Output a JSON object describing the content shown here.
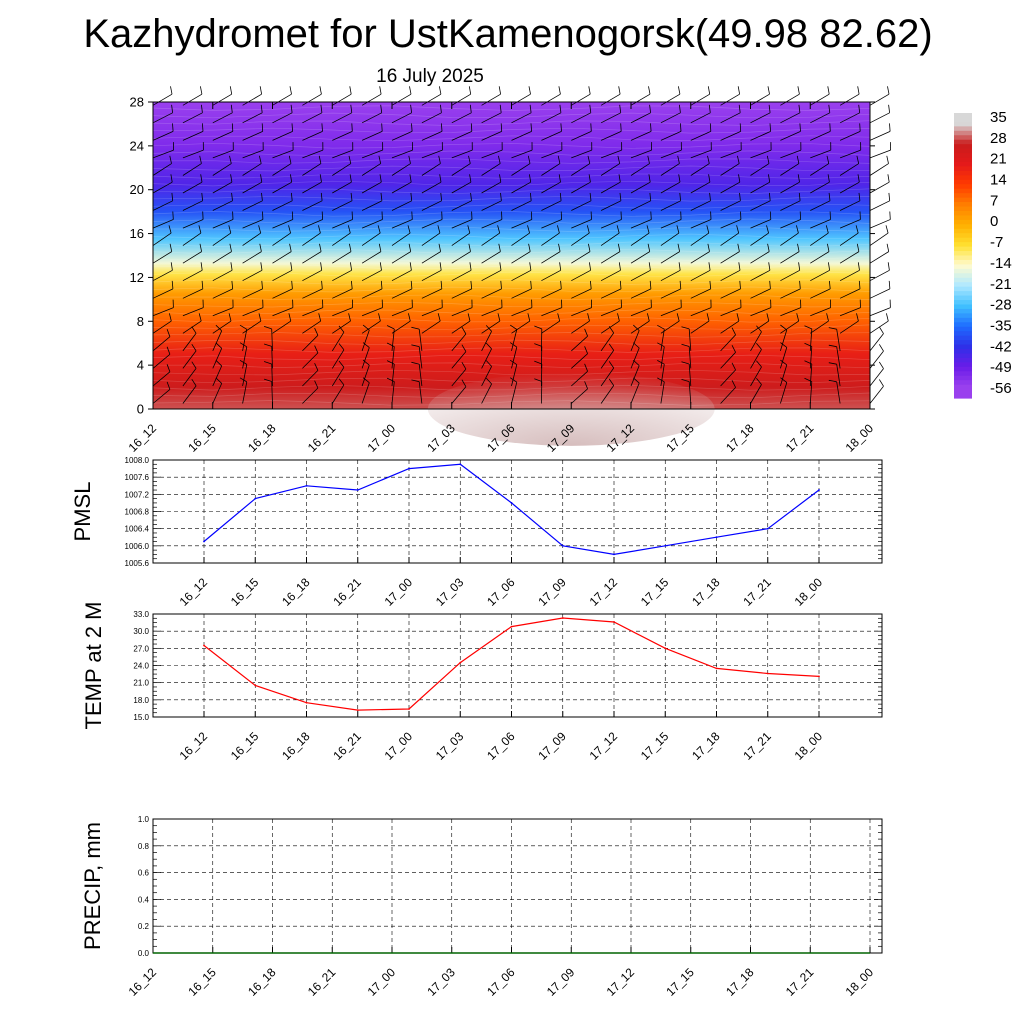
{
  "header": {
    "title": "Kazhydromet for UstKamenogorsk(49.98 82.62)",
    "date": "16 July 2025"
  },
  "chart_data": [
    {
      "type": "heatmap",
      "title": "Kazhydromet for UstKamenogorsk(49.98 82.62)",
      "subtitle": "16 July 2025",
      "x_tick_labels": [
        "16_12",
        "16_15",
        "16_18",
        "16_21",
        "17_00",
        "17_03",
        "17_06",
        "17_09",
        "17_12",
        "17_15",
        "17_18",
        "17_21",
        "18_00"
      ],
      "y_ticks": [
        0,
        4,
        8,
        12,
        16,
        20,
        24,
        28
      ],
      "ylim": [
        0,
        28
      ],
      "colorbar_labels": [
        "35",
        "28",
        "21",
        "14",
        "7",
        "0",
        "-7",
        "-14",
        "-21",
        "-28",
        "-35",
        "-42",
        "-49",
        "-56"
      ],
      "color_stops": [
        "#d8d8d8",
        "#c91c1c",
        "#e41a1a",
        "#ff3a00",
        "#ff7f00",
        "#ffb000",
        "#ffe030",
        "#fffbd0",
        "#aee8ff",
        "#40c0ff",
        "#1e6cff",
        "#2e30e8",
        "#6a1ce8",
        "#9a40ee"
      ],
      "level_profile": [
        {
          "level": 0,
          "value": 30
        },
        {
          "level": 2,
          "value": 27
        },
        {
          "level": 5,
          "value": 20
        },
        {
          "level": 8,
          "value": 10
        },
        {
          "level": 10.5,
          "value": 3
        },
        {
          "level": 12.3,
          "value": -8
        },
        {
          "level": 13.3,
          "value": -15
        },
        {
          "level": 15.5,
          "value": -27
        },
        {
          "level": 18,
          "value": -38
        },
        {
          "level": 20.5,
          "value": -46
        },
        {
          "level": 24,
          "value": -52
        },
        {
          "level": 28,
          "value": -58
        }
      ],
      "surface_warm_core": {
        "time": "17_09",
        "value": 34
      }
    },
    {
      "type": "line",
      "ylabel": "PMSL",
      "x": [
        "16_12",
        "16_15",
        "16_18",
        "16_21",
        "17_00",
        "17_03",
        "17_06",
        "17_09",
        "17_12",
        "17_15",
        "17_18",
        "17_21",
        "18_00"
      ],
      "series": [
        {
          "values": [
            1006.1,
            1007.1,
            1007.4,
            1007.3,
            1007.8,
            1007.9,
            1007.0,
            1006.0,
            1005.8,
            1006.0,
            1006.2,
            1006.4,
            1007.3
          ]
        }
      ],
      "ylim": [
        1005.6,
        1008.0
      ],
      "y_ticks": [
        "1005.6",
        "1006.0",
        "1006.4",
        "1006.8",
        "1007.2",
        "1007.6",
        "1008.0"
      ],
      "line_color": "#0000ff",
      "grid": true
    },
    {
      "type": "line",
      "ylabel": "TEMP at 2 M",
      "x": [
        "16_12",
        "16_15",
        "16_18",
        "16_21",
        "17_00",
        "17_03",
        "17_06",
        "17_09",
        "17_12",
        "17_15",
        "17_18",
        "17_21",
        "18_00"
      ],
      "series": [
        {
          "values": [
            27.5,
            20.5,
            17.5,
            16.2,
            16.4,
            24.5,
            30.8,
            32.3,
            31.6,
            27.0,
            23.5,
            22.6,
            22.1
          ]
        }
      ],
      "ylim": [
        15.0,
        33.0
      ],
      "y_ticks": [
        "15.0",
        "18.0",
        "21.0",
        "24.0",
        "27.0",
        "30.0",
        "33.0"
      ],
      "line_color": "#ff0000",
      "grid": true
    },
    {
      "type": "line",
      "ylabel": "PRECIP, mm",
      "x": [
        "16_12",
        "16_15",
        "16_18",
        "16_21",
        "17_00",
        "17_03",
        "17_06",
        "17_09",
        "17_12",
        "17_15",
        "17_18",
        "17_21",
        "18_00"
      ],
      "series": [
        {
          "values": [
            0,
            0,
            0,
            0,
            0,
            0,
            0,
            0,
            0,
            0,
            0,
            0,
            0
          ]
        }
      ],
      "ylim": [
        0.0,
        1.0
      ],
      "y_ticks": [
        "0.0",
        "0.2",
        "0.4",
        "0.6",
        "0.8",
        "1.0"
      ],
      "line_color": "#006400",
      "grid": true
    }
  ]
}
